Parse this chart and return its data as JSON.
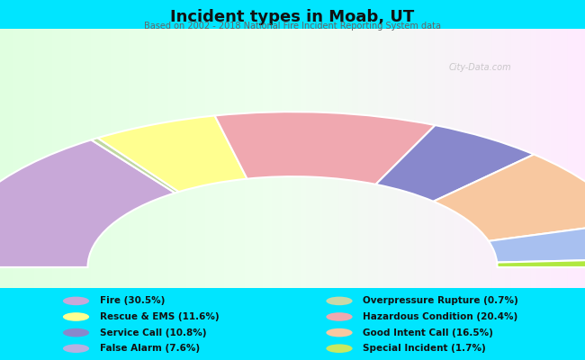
{
  "title": "Incident types in Moab, UT",
  "subtitle": "Based on 2002 - 2018 National Fire Incident Reporting System data",
  "background_color": "#00e5ff",
  "watermark": "City-Data.com",
  "segment_order": [
    {
      "label": "Fire",
      "pct": 30.5,
      "color": "#c8a8d8"
    },
    {
      "label": "Rescue & EMS",
      "pct": 11.6,
      "color": "#ffff90"
    },
    {
      "label": "Hazardous Condition",
      "pct": 20.4,
      "color": "#f0a8b0"
    },
    {
      "label": "Service Call",
      "pct": 10.8,
      "color": "#8888cc"
    },
    {
      "label": "Good Intent Call",
      "pct": 16.5,
      "color": "#f8c8a0"
    },
    {
      "label": "False Alarm",
      "pct": 7.6,
      "color": "#a8c0f0"
    },
    {
      "label": "Special Incident",
      "pct": 1.7,
      "color": "#b0e840"
    },
    {
      "label": "Overpressure Rupture",
      "pct": 0.7,
      "color": "#c0d8a0"
    }
  ],
  "legend_left": [
    {
      "label": "Fire (30.5%)",
      "color": "#c8a8d8"
    },
    {
      "label": "Rescue & EMS (11.6%)",
      "color": "#ffff90"
    },
    {
      "label": "Service Call (10.8%)",
      "color": "#8888cc"
    },
    {
      "label": "False Alarm (7.6%)",
      "color": "#b8b0e0"
    }
  ],
  "legend_right": [
    {
      "label": "Overpressure Rupture (0.7%)",
      "color": "#c8d8a8"
    },
    {
      "label": "Hazardous Condition (20.4%)",
      "color": "#f0a8b0"
    },
    {
      "label": "Good Intent Call (16.5%)",
      "color": "#f8c8a0"
    },
    {
      "label": "Special Incident (1.7%)",
      "color": "#c8e860"
    }
  ]
}
